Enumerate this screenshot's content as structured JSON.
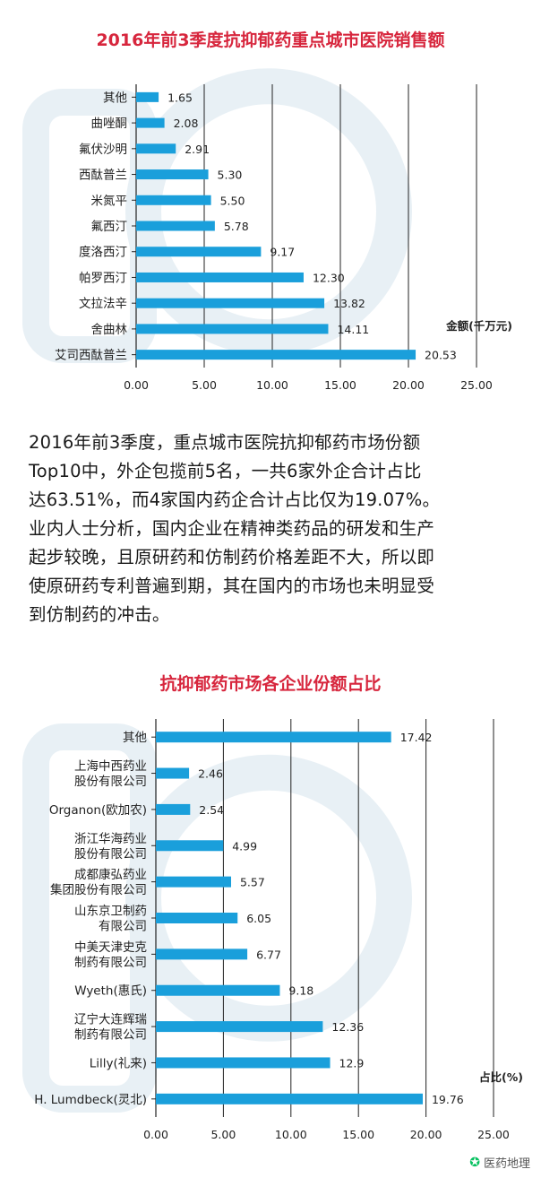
{
  "chart_data": [
    {
      "type": "bar",
      "orientation": "horizontal",
      "title": "2016年前3季度抗抑郁药重点城市医院销售额",
      "unit_label": "金额(千万元)",
      "categories": [
        "其他",
        "曲唑酮",
        "氟伏沙明",
        "西酞普兰",
        "米氮平",
        "氟西汀",
        "度洛西汀",
        "帕罗西汀",
        "文拉法辛",
        "舍曲林",
        "艾司西酞普兰"
      ],
      "values": [
        1.65,
        2.08,
        2.91,
        5.3,
        5.5,
        5.78,
        9.17,
        12.3,
        13.82,
        14.11,
        20.53
      ],
      "value_labels": [
        "1.65",
        "2.08",
        "2.91",
        "5.30",
        "5.50",
        "5.78",
        "9.17",
        "12.30",
        "13.82",
        "14.11",
        "20.53"
      ],
      "xlim": [
        0,
        25
      ],
      "ticks": [
        "0.00",
        "5.00",
        "10.00",
        "15.00",
        "20.00",
        "25.00"
      ],
      "grid": true,
      "bar_color": "#1a9fdb"
    },
    {
      "type": "bar",
      "orientation": "horizontal",
      "title": "抗抑郁药市场各企业份额占比",
      "unit_label": "占比(%)",
      "categories": [
        [
          "其他"
        ],
        [
          "上海中西药业",
          "股份有限公司"
        ],
        [
          "Organon(欧加农)"
        ],
        [
          "浙江华海药业",
          "股份有限公司"
        ],
        [
          "成都康弘药业",
          "集团股份有限公司"
        ],
        [
          "山东京卫制药",
          "有限公司"
        ],
        [
          "中美天津史克",
          "制药有限公司"
        ],
        [
          "Wyeth(惠氏)"
        ],
        [
          "辽宁大连辉瑞",
          "制药有限公司"
        ],
        [
          "Lilly(礼来)"
        ],
        [
          "H. Lumdbeck(灵北)"
        ]
      ],
      "values": [
        17.42,
        2.46,
        2.54,
        4.99,
        5.57,
        6.05,
        6.77,
        9.18,
        12.36,
        12.9,
        19.76
      ],
      "value_labels": [
        "17.42",
        "2.46",
        "2.54",
        "4.99",
        "5.57",
        "6.05",
        "6.77",
        "9.18",
        "12.36",
        "12.9",
        "19.76"
      ],
      "xlim": [
        0,
        25
      ],
      "ticks": [
        "0.00",
        "5.00",
        "10.00",
        "15.00",
        "20.00",
        "25.00"
      ],
      "grid": true,
      "bar_color": "#1a9fdb"
    }
  ],
  "article": {
    "lines": [
      "2016年前3季度，重点城市医院抗抑郁药市场份额",
      "Top10中，外企包揽前5名，一共6家外企合计占比",
      "达63.51%，而4家国内药企合计占比仅为19.07%。",
      "业内人士分析，国内企业在精神类药品的研发和生产",
      "起步较晚，且原研药和仿制药价格差距不大，所以即",
      "使原研药专利普遍到期，其在国内的市场也未明显受",
      "到仿制药的冲击。"
    ]
  },
  "footer": {
    "icon": "wechat-icon",
    "text": "医药地理"
  }
}
